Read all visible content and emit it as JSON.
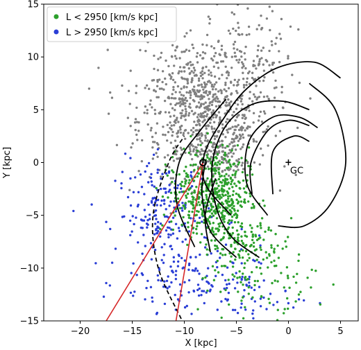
{
  "chart_data": {
    "type": "scatter",
    "xlabel": "X [kpc]",
    "ylabel": "Y [kpc]",
    "xlim": [
      -23.5,
      6.7
    ],
    "ylim": [
      -15,
      15
    ],
    "xticks": [
      -20,
      -15,
      -10,
      -5,
      0,
      5
    ],
    "yticks": [
      -15,
      -10,
      -5,
      0,
      5,
      10,
      15
    ],
    "grid": false,
    "legend": {
      "position": "top-left",
      "entries": [
        {
          "label": "L < 2950 [km/s kpc]",
          "color": "#2ca02c"
        },
        {
          "label": "L > 2950 [km/s kpc]",
          "color": "#2b3fd6"
        }
      ]
    },
    "background_color": "#808080",
    "sun": {
      "x": -8.2,
      "y": 0.0
    },
    "galactic_center": {
      "x": 0.0,
      "y": 0.0,
      "label": "GC"
    },
    "series": [
      {
        "name": "L < 2950 [km/s kpc]",
        "color": "#2ca02c",
        "clusters": [
          {
            "cx": -7.0,
            "cy": -3.0,
            "sx": 1.6,
            "sy": 2.2,
            "n": 420
          },
          {
            "cx": -4.5,
            "cy": -7.5,
            "sx": 2.0,
            "sy": 2.2,
            "n": 170
          },
          {
            "cx": -2.0,
            "cy": -11.5,
            "sx": 2.4,
            "sy": 1.8,
            "n": 60
          },
          {
            "cx": -9.5,
            "cy": -3.0,
            "sx": 1.3,
            "sy": 1.8,
            "n": 70
          }
        ]
      },
      {
        "name": "L > 2950 [km/s kpc]",
        "color": "#2b3fd6",
        "clusters": [
          {
            "cx": -12.0,
            "cy": -5.0,
            "sx": 2.3,
            "sy": 2.6,
            "n": 210
          },
          {
            "cx": -8.5,
            "cy": -11.5,
            "sx": 3.5,
            "sy": 2.0,
            "n": 130
          },
          {
            "cx": -3.5,
            "cy": -12.8,
            "sx": 2.2,
            "sy": 1.3,
            "n": 35
          }
        ]
      },
      {
        "name": "",
        "color": "#808080",
        "clusters": [
          {
            "cx": -8.0,
            "cy": 4.0,
            "sx": 3.2,
            "sy": 2.6,
            "n": 620
          },
          {
            "cx": -9.5,
            "cy": 8.5,
            "sx": 3.0,
            "sy": 2.0,
            "n": 160
          },
          {
            "cx": -3.5,
            "cy": 10.0,
            "sx": 2.0,
            "sy": 2.6,
            "n": 120
          },
          {
            "cx": -6.5,
            "cy": 1.0,
            "sx": 1.2,
            "sy": 1.0,
            "n": 80
          }
        ]
      }
    ],
    "spiral_arms": [
      {
        "style": "solid",
        "points": [
          [
            -5.5,
            -5.0
          ],
          [
            -8.0,
            -2.0
          ],
          [
            -8.0,
            1.0
          ],
          [
            -6.0,
            4.5
          ],
          [
            -4.0,
            7.0
          ],
          [
            -1.0,
            9.0
          ],
          [
            2.5,
            9.5
          ],
          [
            5.0,
            8.0
          ]
        ]
      },
      {
        "style": "solid",
        "points": [
          [
            -2.8,
            -9.0
          ],
          [
            -5.5,
            -7.0
          ],
          [
            -7.0,
            -4.0
          ],
          [
            -7.3,
            0.0
          ],
          [
            -6.0,
            3.5
          ],
          [
            -3.5,
            5.5
          ],
          [
            -0.5,
            5.8
          ],
          [
            2.0,
            5.0
          ]
        ]
      },
      {
        "style": "solid",
        "points": [
          [
            -2.0,
            -5.0
          ],
          [
            -4.0,
            -2.0
          ],
          [
            -3.8,
            2.0
          ],
          [
            -1.5,
            4.3
          ],
          [
            1.0,
            4.3
          ],
          [
            2.8,
            3.3
          ]
        ]
      },
      {
        "style": "solid",
        "points": [
          [
            -3.5,
            -3.0
          ],
          [
            -3.6,
            0.0
          ],
          [
            -2.0,
            3.0
          ],
          [
            0.0,
            4.0
          ],
          [
            2.0,
            3.5
          ]
        ]
      },
      {
        "style": "solid",
        "points": [
          [
            -9.0,
            -8.0
          ],
          [
            -10.7,
            -4.0
          ],
          [
            -10.5,
            0.0
          ],
          [
            -8.5,
            3.0
          ],
          [
            -6.0,
            6.0
          ]
        ]
      },
      {
        "style": "solid",
        "points": [
          [
            -7.5,
            -8.5
          ],
          [
            -8.0,
            -5.0
          ],
          [
            -7.0,
            -1.5
          ]
        ]
      },
      {
        "style": "solid",
        "points": [
          [
            -1.5,
            -3.0
          ],
          [
            -1.5,
            1.0
          ],
          [
            0.5,
            2.5
          ],
          [
            2.0,
            2.0
          ]
        ]
      },
      {
        "style": "dashed",
        "points": [
          [
            -10.3,
            -14.8
          ],
          [
            -12.5,
            -10.0
          ],
          [
            -13.0,
            -5.0
          ],
          [
            -11.5,
            0.0
          ],
          [
            -10.0,
            2.5
          ]
        ]
      },
      {
        "style": "solid",
        "points": [
          [
            -5.0,
            -9.0
          ],
          [
            -7.5,
            -6.5
          ],
          [
            -8.3,
            -3.0
          ],
          [
            -8.0,
            0.0
          ]
        ]
      },
      {
        "style": "solid",
        "points": [
          [
            -1.0,
            -6.0
          ],
          [
            1.5,
            -6.0
          ],
          [
            4.0,
            -4.0
          ],
          [
            5.5,
            0.0
          ],
          [
            4.5,
            5.0
          ],
          [
            2.0,
            7.5
          ]
        ]
      }
    ],
    "sightlines": [
      {
        "color": "#d62728",
        "from": [
          -8.2,
          0.0
        ],
        "to": [
          -17.5,
          -15.0
        ]
      },
      {
        "color": "#d62728",
        "from": [
          -8.2,
          0.0
        ],
        "to": [
          -10.8,
          -15.0
        ]
      }
    ]
  }
}
